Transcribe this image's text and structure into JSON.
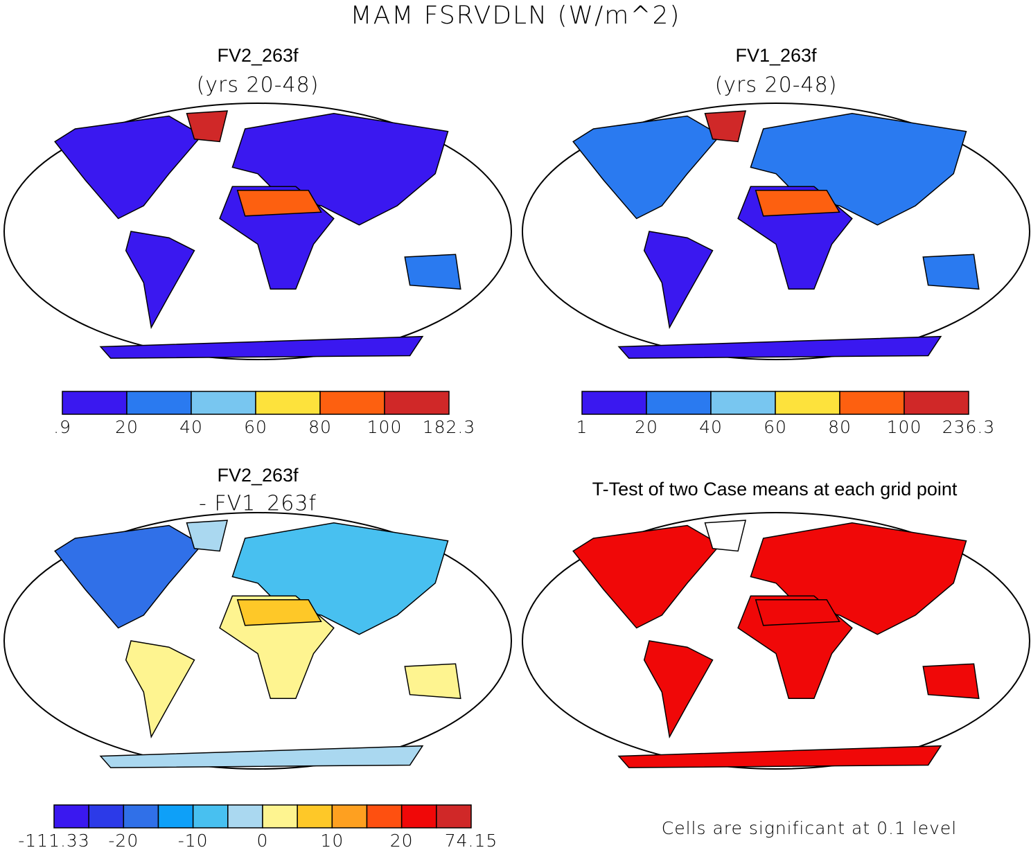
{
  "title": "MAM FSRVDLN (W/m^2)",
  "panels": [
    {
      "title": "FV2_263f",
      "subtitle": "(yrs 20-48)",
      "colorbar": {
        "colors": [
          "#3a18f0",
          "#2a7af0",
          "#78c6f0",
          "#fde23c",
          "#fd6010",
          "#d02828"
        ],
        "labels": [
          ".9",
          "20",
          "40",
          "60",
          "80",
          "100",
          "182.3"
        ]
      }
    },
    {
      "title": "FV1_263f",
      "subtitle": "(yrs 20-48)",
      "colorbar": {
        "colors": [
          "#3a18f0",
          "#2a7af0",
          "#78c6f0",
          "#fde23c",
          "#fd6010",
          "#d02828"
        ],
        "labels": [
          "1",
          "20",
          "40",
          "60",
          "80",
          "100",
          "236.3"
        ]
      }
    },
    {
      "title": "FV2_263f",
      "subtitle": "- FV1_263f",
      "colorbar": {
        "colors": [
          "#3a18f0",
          "#2c3ae8",
          "#3070e8",
          "#0ea0f8",
          "#48c0f0",
          "#aad8f0",
          "#fef490",
          "#fec828",
          "#fea020",
          "#fe5010",
          "#f00808",
          "#d02828"
        ],
        "labels": [
          "-111.33",
          "-20",
          "-10",
          "0",
          "10",
          "20",
          "74.15"
        ]
      }
    },
    {
      "title": "T-Test of two Case means at each grid point",
      "note": "Cells are significant at 0.1 level"
    }
  ]
}
